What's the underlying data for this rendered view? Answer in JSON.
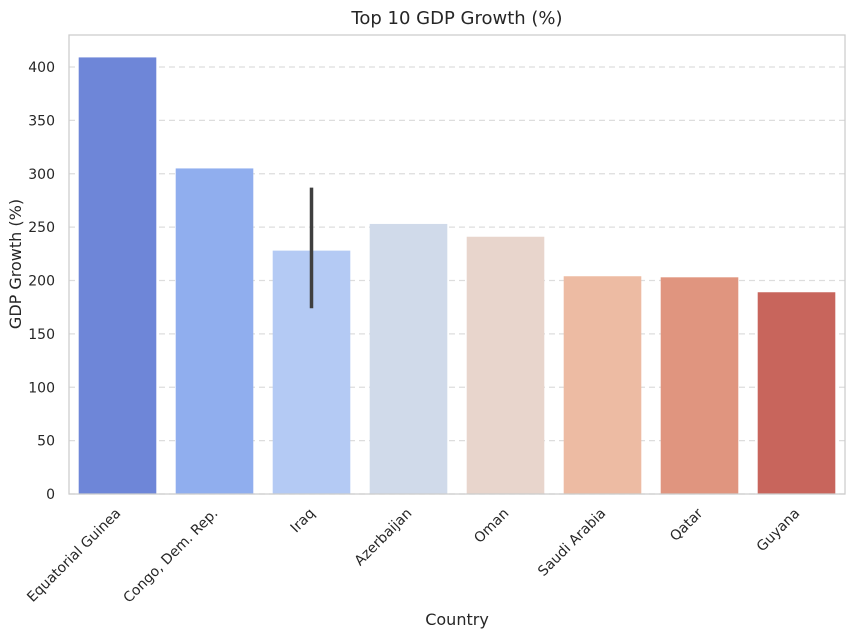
{
  "chart_data": {
    "type": "bar",
    "title": "Top 10 GDP Growth (%)",
    "xlabel": "Country",
    "ylabel": "GDP Growth (%)",
    "categories": [
      "Equatorial Guinea",
      "Congo, Dem. Rep.",
      "Iraq",
      "Azerbaijan",
      "Oman",
      "Saudi Arabia",
      "Qatar",
      "Guyana"
    ],
    "values": [
      409,
      305,
      228,
      253,
      241,
      204,
      203,
      189
    ],
    "error_bars": [
      null,
      null,
      [
        174,
        287
      ],
      null,
      null,
      null,
      null,
      null
    ],
    "colors": [
      "#6e86d8",
      "#90aeee",
      "#b4caf4",
      "#d0daea",
      "#e8d5cc",
      "#edbba3",
      "#e0957f",
      "#c8655c"
    ],
    "ylim": [
      0,
      430
    ],
    "yticks": [
      0,
      50,
      100,
      150,
      200,
      250,
      300,
      350,
      400
    ],
    "grid": "y-dashed"
  }
}
